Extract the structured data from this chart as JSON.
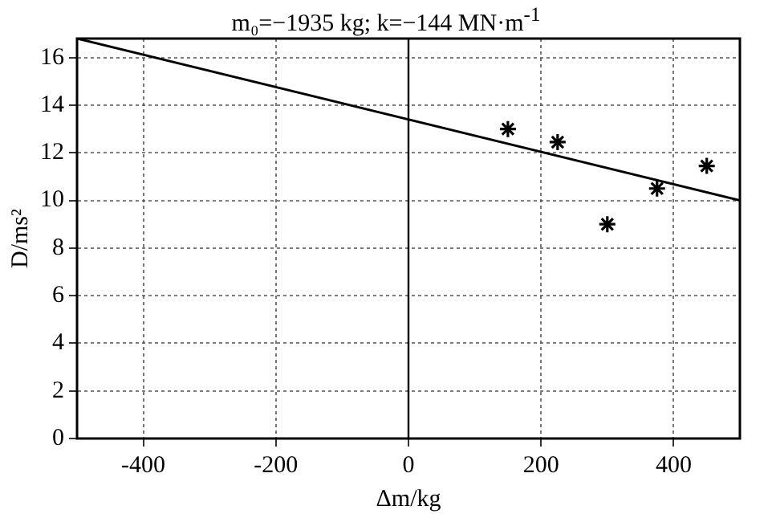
{
  "chart_data": {
    "type": "scatter",
    "title": "m₀=−1935 kg; k=−144 MN·m$^{-1}$",
    "xlabel": "Δm/kg",
    "ylabel": "D/ms²",
    "xlim": [
      -500,
      500
    ],
    "xticks": [
      -400,
      -200,
      0,
      200,
      400
    ],
    "ylim": [
      0,
      16.8
    ],
    "yticks": [
      0,
      2,
      4,
      6,
      8,
      10,
      12,
      14,
      16
    ],
    "grid": true,
    "marker": "cross",
    "legend": false,
    "ref_lines": [
      {
        "axis": "x",
        "value": 0,
        "color": "#000000",
        "line_style": "solid"
      }
    ],
    "series": [
      {
        "type": "scatter",
        "color": "#000000",
        "x": [
          150,
          225,
          300,
          375,
          450
        ],
        "values": [
          13.0,
          12.45,
          9.0,
          10.5,
          11.45
        ]
      },
      {
        "type": "line",
        "color": "#000000",
        "marker": "none",
        "line_style": "solid",
        "x": [
          -500,
          500
        ],
        "values": [
          16.8,
          10.0
        ]
      }
    ]
  }
}
